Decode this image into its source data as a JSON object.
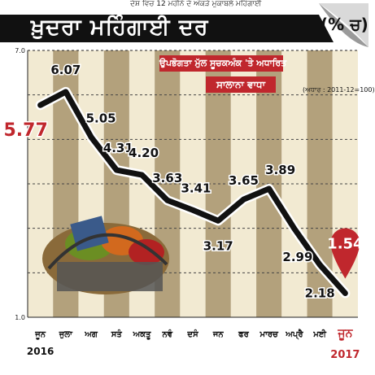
{
  "top_fragment": "ਦੇਸ਼ ਵਿਚ 12 ਮਹੀਨੇ ਦੇ ਅੰਕੜੇ ਮੁਕਾਬਲੇ ਮਹਿੰਗਾਈ",
  "colors": {
    "title_bg": "#111111",
    "accent": "#c0272d",
    "stripe_dark": "#b3a17c",
    "stripe_light": "#f2ead2",
    "line": "#111111",
    "line_outline": "#ffffff"
  },
  "chart_data": {
    "type": "line",
    "title": "ਖ਼ੁਦਰਾ ਮਹਿੰਗਾਈ ਦਰ",
    "unit": "(% ਚ)",
    "subtitle": "ਉਪਭੋਗਤਾ ਮੁੱਲ ਸੂਚਕਅੰਕ 'ਤੇ ਅਧਾਰਿਤ",
    "subtitle2": "ਸਾਲਾਨਾ ਵਾਧਾ",
    "base_note": "(ਅਧਾਰ : 2011-12=100)",
    "categories": [
      "ਜੂਨ",
      "ਜੁਲਾ",
      "ਅਗ",
      "ਸਤੰ",
      "ਅਕਤੂ",
      "ਨਵੰ",
      "ਦਸੰ",
      "ਜਨ",
      "ਫਰ",
      "ਮਾਰਚ",
      "ਅਪ੍ਰੈ",
      "ਮਈ",
      "ਜੂਨ"
    ],
    "year_start": "2016",
    "year_end": "2017",
    "values": [
      5.77,
      6.07,
      5.05,
      4.31,
      4.2,
      3.63,
      3.41,
      3.17,
      3.65,
      3.89,
      2.99,
      2.18,
      1.54
    ],
    "value_labels": [
      "5.77",
      "6.07",
      "5.05",
      "4.31",
      "4.20",
      "3.63",
      "3.41",
      "3.17",
      "3.65",
      "3.89",
      "2.99",
      "2.18",
      "1.54"
    ],
    "yticks": [
      "7.0",
      "1.0"
    ],
    "ylim": [
      1.0,
      7.0
    ],
    "grid": "dashed horizontal"
  }
}
